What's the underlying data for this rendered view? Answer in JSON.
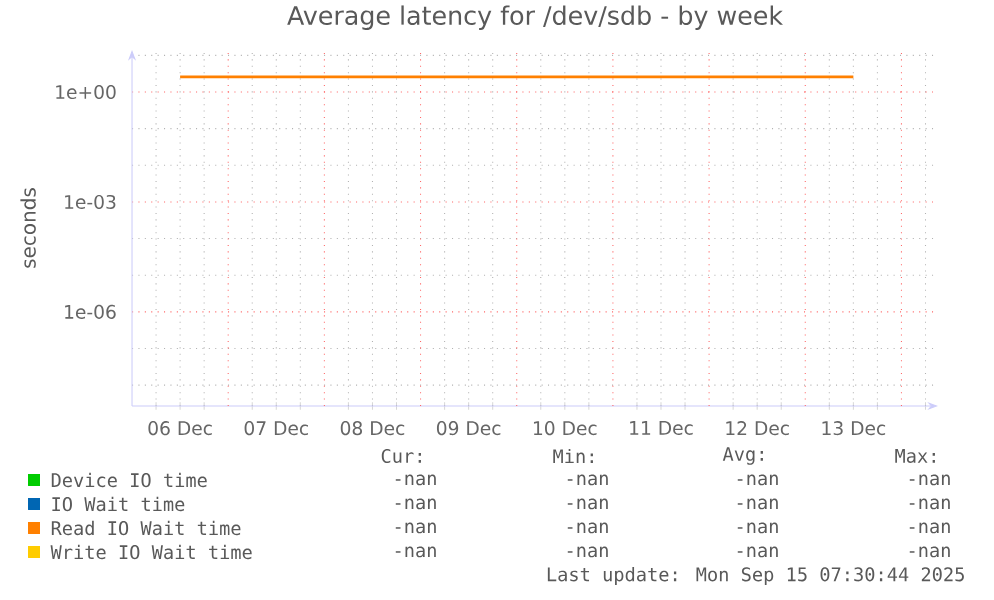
{
  "chart_data": {
    "type": "line",
    "title": "Average latency for /dev/sdb - by week",
    "ylabel": "seconds",
    "categories": [
      "06 Dec",
      "07 Dec",
      "08 Dec",
      "09 Dec",
      "10 Dec",
      "11 Dec",
      "12 Dec",
      "13 Dec"
    ],
    "series": [
      {
        "name": "Device IO time",
        "color": "#00cc00",
        "values": [
          null,
          null,
          null,
          null,
          null,
          null,
          null,
          null
        ]
      },
      {
        "name": "IO Wait time",
        "color": "#0066b3",
        "values": [
          null,
          null,
          null,
          null,
          null,
          null,
          null,
          null
        ]
      },
      {
        "name": "Read IO Wait time",
        "color": "#ff8000",
        "values": [
          2.6,
          2.6,
          2.6,
          2.6,
          2.6,
          2.6,
          2.6,
          2.6
        ]
      },
      {
        "name": "Write IO Wait time",
        "color": "#ffcc00",
        "values": [
          null,
          null,
          null,
          null,
          null,
          null,
          null,
          null
        ]
      }
    ],
    "log": "y",
    "ylim": [
      2.7e-09,
      14
    ],
    "yticks": [
      {
        "value": 10,
        "label": null
      },
      {
        "value": 1,
        "label": "1e+00"
      },
      {
        "value": 0.1,
        "label": null
      },
      {
        "value": 0.01,
        "label": null
      },
      {
        "value": 0.001,
        "label": "1e-03"
      },
      {
        "value": 0.0001,
        "label": null
      },
      {
        "value": 1e-05,
        "label": null
      },
      {
        "value": 1e-06,
        "label": "1e-06"
      },
      {
        "value": 1e-07,
        "label": null
      },
      {
        "value": 1e-08,
        "label": null
      }
    ],
    "grid": true,
    "legend": "bottom",
    "line_style": "solid",
    "marker": "none",
    "annotations": [
      "Cur:",
      "Min:",
      "Avg:",
      "Max:",
      "-nan",
      "-nan",
      "-nan",
      "-nan",
      "-nan",
      "-nan",
      "-nan",
      "-nan",
      "-nan",
      "-nan",
      "-nan",
      "-nan",
      "-nan",
      "-nan",
      "-nan",
      "-nan",
      "Last update: Mon Sep 15 07:30:44 2025"
    ]
  }
}
